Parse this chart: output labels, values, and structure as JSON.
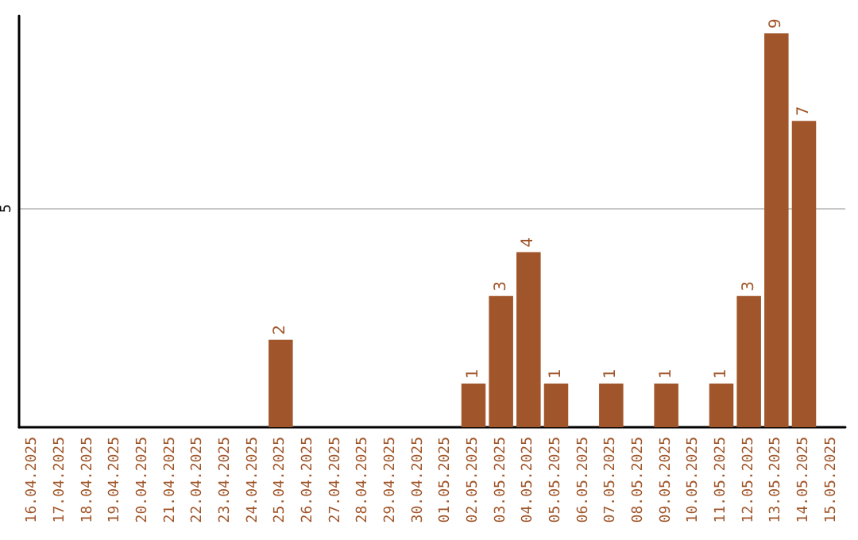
{
  "chart_data": {
    "type": "bar",
    "categories": [
      "16.04.2025",
      "17.04.2025",
      "18.04.2025",
      "19.04.2025",
      "20.04.2025",
      "21.04.2025",
      "22.04.2025",
      "23.04.2025",
      "24.04.2025",
      "25.04.2025",
      "26.04.2025",
      "27.04.2025",
      "28.04.2025",
      "29.04.2025",
      "30.04.2025",
      "01.05.2025",
      "02.05.2025",
      "03.05.2025",
      "04.05.2025",
      "05.05.2025",
      "06.05.2025",
      "07.05.2025",
      "08.05.2025",
      "09.05.2025",
      "10.05.2025",
      "11.05.2025",
      "12.05.2025",
      "13.05.2025",
      "14.05.2025",
      "15.05.2025"
    ],
    "values": [
      null,
      null,
      null,
      null,
      null,
      null,
      null,
      null,
      null,
      2,
      null,
      null,
      null,
      null,
      null,
      null,
      1,
      3,
      4,
      1,
      null,
      1,
      null,
      1,
      null,
      1,
      3,
      9,
      7,
      null
    ],
    "color": "#a0562a",
    "ylim": [
      0,
      9.4
    ],
    "yticks": [
      5
    ],
    "grid": "y",
    "data_labels": true
  }
}
